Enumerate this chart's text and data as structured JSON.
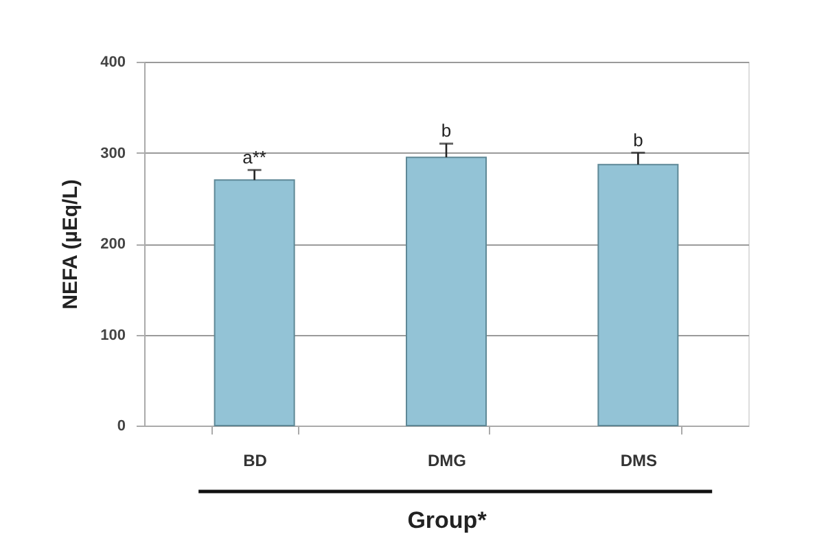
{
  "chart_data": {
    "type": "bar",
    "categories": [
      "BD",
      "DMG",
      "DMS"
    ],
    "values": [
      270,
      295,
      287
    ],
    "errors": [
      [
        270,
        281
      ],
      [
        295,
        310
      ],
      [
        287,
        300
      ]
    ],
    "color": "#93c3d6",
    "ylim": [
      0,
      400
    ],
    "yticks": [
      0,
      100,
      200,
      300,
      400
    ],
    "ylabel": "NEFA (µEq/L)",
    "xlabel": "Group*",
    "grid": "y",
    "annotations": [
      {
        "text": "a**",
        "x": "BD",
        "y": 281
      },
      {
        "text": "b",
        "x": "DMG",
        "y": 310
      },
      {
        "text": "b",
        "x": "DMS",
        "y": 300
      }
    ]
  }
}
